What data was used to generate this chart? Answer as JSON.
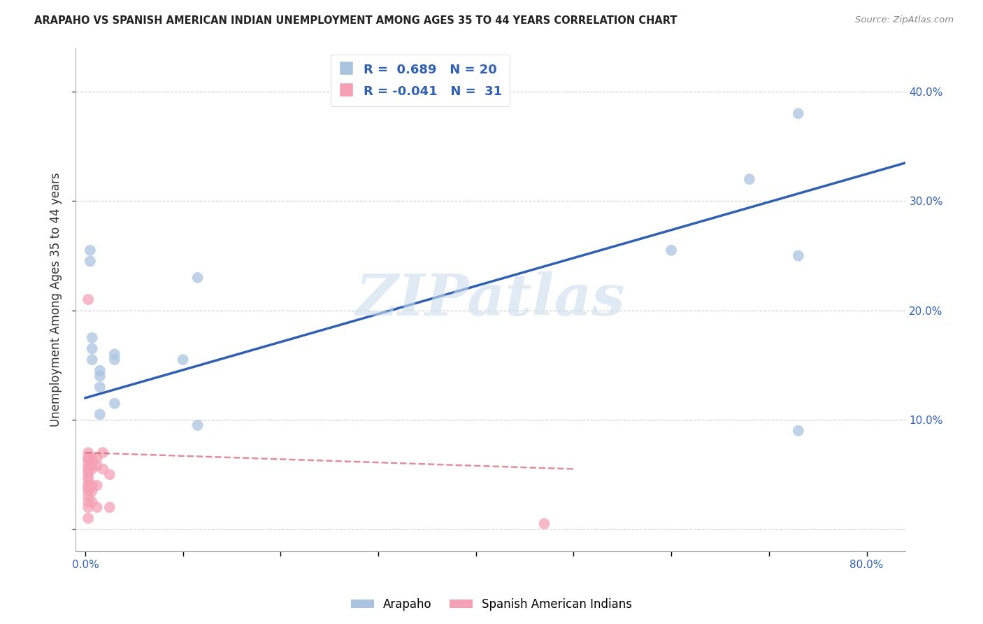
{
  "title": "ARAPAHO VS SPANISH AMERICAN INDIAN UNEMPLOYMENT AMONG AGES 35 TO 44 YEARS CORRELATION CHART",
  "source": "Source: ZipAtlas.com",
  "ylabel": "Unemployment Among Ages 35 to 44 years",
  "xlim": [
    -0.01,
    0.84
  ],
  "ylim": [
    -0.02,
    0.44
  ],
  "xticks": [
    0.0,
    0.1,
    0.2,
    0.3,
    0.4,
    0.5,
    0.6,
    0.7,
    0.8
  ],
  "xticklabels": [
    "0.0%",
    "",
    "",
    "",
    "",
    "",
    "",
    "",
    "80.0%"
  ],
  "yticks": [
    0.0,
    0.1,
    0.2,
    0.3,
    0.4
  ],
  "right_yticklabels": [
    "",
    "10.0%",
    "20.0%",
    "30.0%",
    "40.0%"
  ],
  "arapaho_R": 0.689,
  "arapaho_N": 20,
  "spanish_R": -0.041,
  "spanish_N": 31,
  "arapaho_color": "#aac4e0",
  "spanish_color": "#f5a0b5",
  "arapaho_line_color": "#3060b0",
  "spanish_line_color": "#d06070",
  "watermark_text": "ZIPatlas",
  "arapaho_x": [
    0.005,
    0.005,
    0.007,
    0.007,
    0.007,
    0.015,
    0.015,
    0.015,
    0.015,
    0.03,
    0.03,
    0.03,
    0.1,
    0.115,
    0.115,
    0.6,
    0.68,
    0.73,
    0.73,
    0.73
  ],
  "arapaho_y": [
    0.255,
    0.245,
    0.175,
    0.165,
    0.155,
    0.145,
    0.14,
    0.13,
    0.105,
    0.16,
    0.155,
    0.115,
    0.155,
    0.23,
    0.095,
    0.255,
    0.32,
    0.38,
    0.09,
    0.25
  ],
  "spanish_x": [
    0.003,
    0.003,
    0.003,
    0.003,
    0.003,
    0.003,
    0.003,
    0.003,
    0.003,
    0.003,
    0.003,
    0.003,
    0.003,
    0.003,
    0.003,
    0.003,
    0.007,
    0.007,
    0.007,
    0.007,
    0.007,
    0.007,
    0.012,
    0.012,
    0.012,
    0.012,
    0.018,
    0.018,
    0.025,
    0.025,
    0.47
  ],
  "spanish_y": [
    0.21,
    0.07,
    0.065,
    0.063,
    0.058,
    0.055,
    0.052,
    0.048,
    0.045,
    0.04,
    0.038,
    0.035,
    0.03,
    0.025,
    0.02,
    0.01,
    0.065,
    0.06,
    0.055,
    0.04,
    0.035,
    0.025,
    0.065,
    0.058,
    0.04,
    0.02,
    0.07,
    0.055,
    0.05,
    0.02,
    0.005
  ],
  "arapaho_line_x0": 0.0,
  "arapaho_line_y0": 0.12,
  "arapaho_line_x1": 0.84,
  "arapaho_line_y1": 0.335,
  "spanish_line_x0": 0.0,
  "spanish_line_y0": 0.07,
  "spanish_line_x1": 0.5,
  "spanish_line_y1": 0.055,
  "grid_color": "#cccccc",
  "background_color": "#ffffff",
  "legend_text_color": "#3060b0",
  "tick_color": "#3060b0"
}
